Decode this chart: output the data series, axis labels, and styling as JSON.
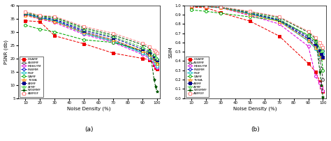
{
  "x": [
    10,
    20,
    30,
    50,
    70,
    90,
    95,
    98,
    99,
    100
  ],
  "psnr": {
    "DBAMF": [
      34.2,
      33.8,
      28.5,
      25.5,
      22.0,
      20.0,
      19.5,
      17.5,
      16.5,
      16.0
    ],
    "ASWMF": [
      36.5,
      35.0,
      34.0,
      29.5,
      26.5,
      22.5,
      21.0,
      19.5,
      18.5,
      17.5
    ],
    "MDBUTM": [
      36.2,
      34.8,
      33.5,
      29.0,
      26.0,
      21.5,
      20.0,
      18.0,
      17.0,
      16.5
    ],
    "FSBMM": [
      36.8,
      35.2,
      34.5,
      30.0,
      27.0,
      22.5,
      21.5,
      20.0,
      19.0,
      18.0
    ],
    "RSIF": [
      36.8,
      35.2,
      34.2,
      29.5,
      26.5,
      22.0,
      20.5,
      19.0,
      18.0,
      17.0
    ],
    "DAMF": [
      32.5,
      31.0,
      30.0,
      27.0,
      26.0,
      23.0,
      22.0,
      20.5,
      19.5,
      18.0
    ],
    "TVWA": [
      36.2,
      35.0,
      33.8,
      29.8,
      27.0,
      22.8,
      21.5,
      20.0,
      19.2,
      18.2
    ],
    "ARMF": [
      37.0,
      35.5,
      34.8,
      30.5,
      27.8,
      23.5,
      22.5,
      21.0,
      20.0,
      19.5
    ],
    "AFMF": [
      37.2,
      35.8,
      35.2,
      31.0,
      28.2,
      24.2,
      23.0,
      21.5,
      20.5,
      20.0
    ],
    "NRSMMF": [
      37.5,
      36.0,
      35.5,
      31.5,
      28.8,
      25.2,
      23.8,
      12.0,
      9.5,
      7.5
    ],
    "AWM3F": [
      37.5,
      36.2,
      35.8,
      32.0,
      29.5,
      25.8,
      24.5,
      23.0,
      22.5,
      22.0
    ]
  },
  "ssim": {
    "DBAMF": [
      0.98,
      0.975,
      0.92,
      0.83,
      0.67,
      0.375,
      0.285,
      0.175,
      0.12,
      0.07
    ],
    "ASWMF": [
      0.99,
      0.985,
      0.975,
      0.91,
      0.835,
      0.64,
      0.55,
      0.42,
      0.32,
      0.2
    ],
    "MDBUTM": [
      0.99,
      0.985,
      0.972,
      0.89,
      0.8,
      0.56,
      0.235,
      0.16,
      0.115,
      0.08
    ],
    "FSBMM": [
      0.992,
      0.986,
      0.978,
      0.915,
      0.84,
      0.64,
      0.555,
      0.49,
      0.46,
      0.51
    ],
    "RSIF": [
      0.992,
      0.986,
      0.975,
      0.905,
      0.83,
      0.615,
      0.535,
      0.465,
      0.43,
      0.48
    ],
    "DAMF": [
      0.95,
      0.935,
      0.915,
      0.875,
      0.835,
      0.68,
      0.62,
      0.52,
      0.45,
      0.3
    ],
    "TVWA": [
      0.991,
      0.985,
      0.974,
      0.9,
      0.825,
      0.625,
      0.545,
      0.475,
      0.445,
      0.43
    ],
    "ARMF": [
      0.993,
      0.987,
      0.979,
      0.918,
      0.848,
      0.66,
      0.59,
      0.52,
      0.48,
      0.44
    ],
    "AFMF": [
      0.993,
      0.988,
      0.98,
      0.922,
      0.852,
      0.675,
      0.61,
      0.545,
      0.51,
      0.52
    ],
    "NRSMMF": [
      0.994,
      0.989,
      0.982,
      0.93,
      0.87,
      0.71,
      0.64,
      0.28,
      0.14,
      0.01
    ],
    "AWM3F": [
      0.994,
      0.99,
      0.983,
      0.935,
      0.878,
      0.72,
      0.655,
      0.6,
      0.57,
      0.55
    ]
  },
  "filters": [
    "DBAMF",
    "ASWMF",
    "MDBUTM",
    "FSBMM",
    "RSIF",
    "DAMF",
    "TVWA",
    "ARMF",
    "AFMF",
    "NRSMMF",
    "AWM3F"
  ],
  "colors": {
    "DBAMF": "#ee0000",
    "ASWMF": "#444444",
    "MDBUTM": "#dd00dd",
    "FSBMM": "#0000cc",
    "RSIF": "#00bbbb",
    "DAMF": "#00aa00",
    "TVWA": "#ff8800",
    "ARMF": "#000088",
    "AFMF": "#44cc44",
    "NRSMMF": "#005500",
    "AWM3F": "#ff8888"
  },
  "markers": {
    "DBAMF": "s",
    "ASWMF": "o",
    "MDBUTM": "o",
    "FSBMM": "o",
    "RSIF": "o",
    "DAMF": "o",
    "TVWA": "^",
    "ARMF": "s",
    "AFMF": "^",
    "NRSMMF": "*",
    "AWM3F": "s"
  },
  "linestyles": {
    "DBAMF": "--",
    "ASWMF": "--",
    "MDBUTM": "--",
    "FSBMM": "--",
    "RSIF": "-",
    "DAMF": "--",
    "TVWA": "--",
    "ARMF": "--",
    "AFMF": "--",
    "NRSMMF": "--",
    "AWM3F": "--"
  },
  "markerfilled": {
    "DBAMF": true,
    "ASWMF": false,
    "MDBUTM": false,
    "FSBMM": false,
    "RSIF": false,
    "DAMF": false,
    "TVWA": false,
    "ARMF": true,
    "AFMF": false,
    "NRSMMF": true,
    "AWM3F": false
  }
}
